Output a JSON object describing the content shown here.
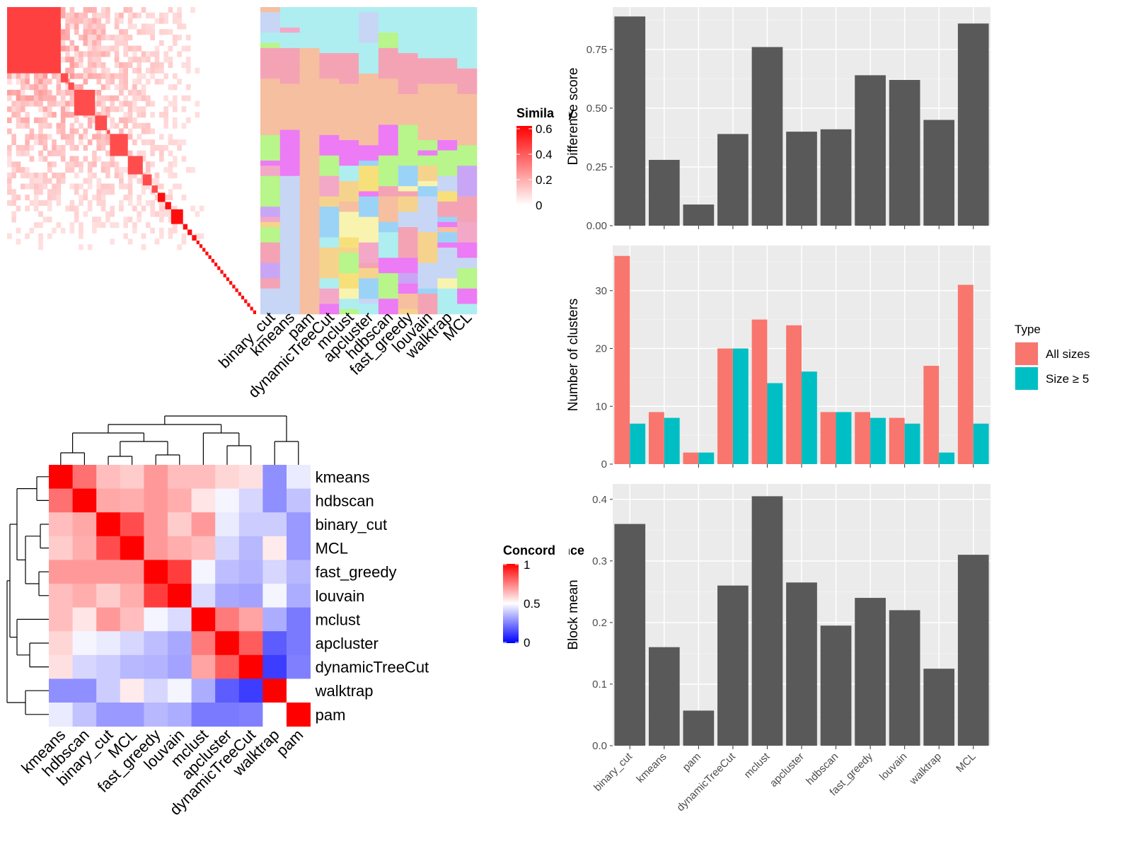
{
  "chart_data": [
    {
      "type": "heatmap",
      "id": "similarity-heatmap",
      "legend_title": "Similarity",
      "legend_ticks": [
        "0",
        "0.2",
        "0.4",
        "0.6"
      ],
      "color_low": "#ffffff",
      "color_high": "#ff0000",
      "side_columns": [
        "binary_cut",
        "kmeans",
        "pam",
        "dynamicTreeCut",
        "mclust",
        "apcluster",
        "hdbscan",
        "fast_greedy",
        "louvain",
        "walktrap",
        "MCL"
      ],
      "diagonal_blocks": [
        36,
        5,
        4,
        14,
        8,
        2,
        12,
        10,
        6,
        4,
        5,
        4,
        8,
        3,
        3,
        3,
        2,
        2,
        2,
        2,
        2,
        2,
        2,
        2,
        2,
        2,
        2,
        2,
        2,
        2,
        2,
        2,
        2,
        2,
        2,
        2
      ]
    },
    {
      "type": "heatmap",
      "id": "concordance-heatmap",
      "legend_title": "Concordance",
      "legend_ticks": [
        "0",
        "0.5",
        "1"
      ],
      "color_low": "#0000ff",
      "color_mid": "#ffffff",
      "color_high": "#ff0000",
      "labels": [
        "kmeans",
        "hdbscan",
        "binary_cut",
        "MCL",
        "fast_greedy",
        "louvain",
        "mclust",
        "apcluster",
        "dynamicTreeCut",
        "walktrap",
        "pam"
      ],
      "values": [
        [
          1.0,
          0.78,
          0.63,
          0.6,
          0.7,
          0.63,
          0.63,
          0.58,
          0.56,
          0.28,
          0.46
        ],
        [
          0.78,
          1.0,
          0.67,
          0.66,
          0.7,
          0.66,
          0.55,
          0.48,
          0.42,
          0.28,
          0.38
        ],
        [
          0.63,
          0.67,
          1.0,
          0.85,
          0.7,
          0.6,
          0.7,
          0.46,
          0.4,
          0.4,
          0.3
        ],
        [
          0.6,
          0.66,
          0.85,
          1.0,
          0.7,
          0.66,
          0.63,
          0.42,
          0.36,
          0.54,
          0.3
        ],
        [
          0.7,
          0.7,
          0.7,
          0.7,
          1.0,
          0.88,
          0.48,
          0.37,
          0.35,
          0.42,
          0.36
        ],
        [
          0.63,
          0.66,
          0.6,
          0.66,
          0.88,
          1.0,
          0.43,
          0.33,
          0.32,
          0.48,
          0.34
        ],
        [
          0.63,
          0.55,
          0.7,
          0.63,
          0.48,
          0.43,
          1.0,
          0.76,
          0.68,
          0.34,
          0.24
        ],
        [
          0.58,
          0.48,
          0.46,
          0.42,
          0.37,
          0.33,
          0.76,
          1.0,
          0.82,
          0.18,
          0.24
        ],
        [
          0.56,
          0.42,
          0.4,
          0.36,
          0.35,
          0.32,
          0.68,
          0.82,
          1.0,
          0.12,
          0.25
        ],
        [
          0.28,
          0.28,
          0.4,
          0.54,
          0.42,
          0.48,
          0.34,
          0.18,
          0.12,
          1.0,
          0.5
        ],
        [
          0.46,
          0.38,
          0.3,
          0.3,
          0.36,
          0.34,
          0.24,
          0.24,
          0.25,
          0.5,
          1.0
        ]
      ]
    },
    {
      "type": "bar",
      "id": "difference-score",
      "categories": [
        "binary_cut",
        "kmeans",
        "pam",
        "dynamicTreeCut",
        "mclust",
        "apcluster",
        "hdbscan",
        "fast_greedy",
        "louvain",
        "walktrap",
        "MCL"
      ],
      "values": [
        0.89,
        0.28,
        0.09,
        0.39,
        0.76,
        0.4,
        0.41,
        0.64,
        0.62,
        0.45,
        0.86
      ],
      "xlabel": "",
      "ylabel": "Difference score",
      "ylim": [
        0,
        0.93
      ],
      "yticks": [
        "0.00",
        "0.25",
        "0.50",
        "0.75"
      ],
      "grid": true,
      "color": "#595959"
    },
    {
      "type": "bar",
      "id": "number-of-clusters",
      "categories": [
        "binary_cut",
        "kmeans",
        "pam",
        "dynamicTreeCut",
        "mclust",
        "apcluster",
        "hdbscan",
        "fast_greedy",
        "louvain",
        "walktrap",
        "MCL"
      ],
      "series": [
        {
          "name": "All sizes",
          "values": [
            36,
            9,
            2,
            20,
            25,
            24,
            9,
            9,
            8,
            17,
            31
          ],
          "color": "#F8766D"
        },
        {
          "name": "Size ≥ 5",
          "values": [
            7,
            8,
            2,
            20,
            14,
            16,
            9,
            8,
            7,
            2,
            7
          ],
          "color": "#00BFC4"
        }
      ],
      "xlabel": "",
      "ylabel": "Number of clusters",
      "ylim": [
        0,
        37.8
      ],
      "yticks": [
        "0",
        "10",
        "20",
        "30"
      ],
      "legend_title": "Type",
      "legend_position": "right",
      "grid": true
    },
    {
      "type": "bar",
      "id": "block-mean",
      "categories": [
        "binary_cut",
        "kmeans",
        "pam",
        "dynamicTreeCut",
        "mclust",
        "apcluster",
        "hdbscan",
        "fast_greedy",
        "louvain",
        "walktrap",
        "MCL"
      ],
      "values": [
        0.36,
        0.16,
        0.057,
        0.26,
        0.405,
        0.265,
        0.195,
        0.24,
        0.22,
        0.125,
        0.31
      ],
      "xlabel": "",
      "ylabel": "Block mean",
      "ylim": [
        0,
        0.425
      ],
      "yticks": [
        "0.0",
        "0.1",
        "0.2",
        "0.3",
        "0.4"
      ],
      "grid": true,
      "color": "#595959"
    }
  ]
}
